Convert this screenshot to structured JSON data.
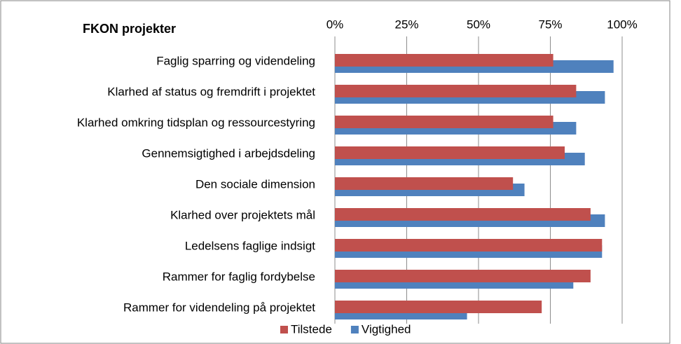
{
  "chart_data": {
    "type": "barh",
    "title": "FKON projekter",
    "categories": [
      "Faglig sparring og videndeling",
      "Klarhed af status  og fremdrift i  projektet",
      "Klarhed omkring tidsplan  og ressourcestyring",
      "Gennemsigtighed i arbejdsdeling",
      "Den sociale dimension",
      "Klarhed over projektets mål",
      "Ledelsens faglige indsigt",
      "Rammer for faglig fordybelse",
      "Rammer for videndeling på projektet"
    ],
    "series": [
      {
        "name": "Tilstede",
        "color": "#c0504d",
        "values": [
          76,
          84,
          76,
          80,
          62,
          89,
          93,
          89,
          72
        ]
      },
      {
        "name": "Vigtighed",
        "color": "#4f81bd",
        "values": [
          97,
          94,
          84,
          87,
          66,
          94,
          93,
          83,
          46
        ]
      }
    ],
    "xlim": [
      0,
      100
    ],
    "xticks": [
      {
        "value": 0,
        "label": "0%"
      },
      {
        "value": 25,
        "label": "25%"
      },
      {
        "value": 50,
        "label": "50%"
      },
      {
        "value": 75,
        "label": "75%"
      },
      {
        "value": 100,
        "label": "100%"
      }
    ],
    "grid": true,
    "legend": "bottom"
  }
}
